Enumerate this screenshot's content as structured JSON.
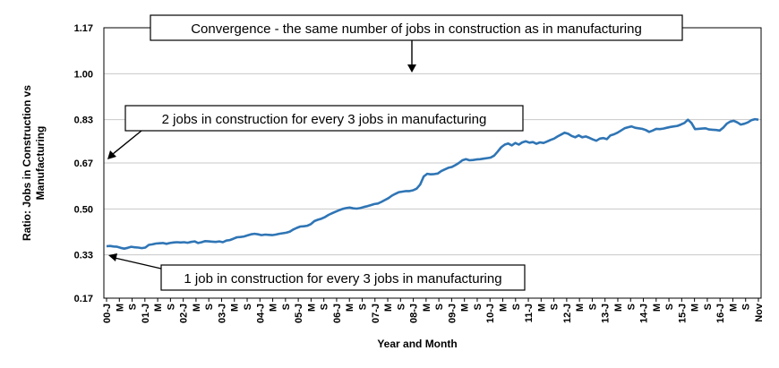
{
  "chart_data": {
    "type": "line",
    "title": "",
    "xlabel": "Year and Month",
    "ylabel_lines": [
      "Ratio: Jobs in Construction vs",
      "Manufacturing"
    ],
    "ylim": [
      0.17,
      1.17
    ],
    "yticks": [
      "1.17",
      "1.00",
      "0.83",
      "0.67",
      "0.50",
      "0.33",
      "0.17"
    ],
    "grid": "horizontal",
    "line_color": "#2f75b5",
    "x_tick_labels": [
      "00-J",
      "M",
      "S",
      "01-J",
      "M",
      "S",
      "02-J",
      "M",
      "S",
      "03-J",
      "M",
      "S",
      "04-J",
      "M",
      "S",
      "05-J",
      "M",
      "S",
      "06-J",
      "M",
      "S",
      "07-J",
      "M",
      "S",
      "08-J",
      "M",
      "S",
      "09-J",
      "M",
      "S",
      "10-J",
      "M",
      "S",
      "11-J",
      "M",
      "S",
      "12-J",
      "M",
      "S",
      "13-J",
      "M",
      "S",
      "14-J",
      "M",
      "S",
      "15-J",
      "M",
      "S",
      "16-J",
      "M",
      "S",
      "Nov"
    ],
    "series": [
      {
        "values": [
          0.362,
          0.363,
          0.361,
          0.36,
          0.356,
          0.353,
          0.356,
          0.36,
          0.358,
          0.357,
          0.355,
          0.357,
          0.367,
          0.369,
          0.372,
          0.373,
          0.374,
          0.371,
          0.374,
          0.376,
          0.377,
          0.376,
          0.377,
          0.375,
          0.378,
          0.38,
          0.374,
          0.377,
          0.381,
          0.38,
          0.379,
          0.378,
          0.38,
          0.377,
          0.383,
          0.385,
          0.39,
          0.395,
          0.396,
          0.398,
          0.402,
          0.406,
          0.408,
          0.406,
          0.403,
          0.405,
          0.404,
          0.403,
          0.405,
          0.408,
          0.41,
          0.412,
          0.416,
          0.424,
          0.43,
          0.435,
          0.436,
          0.438,
          0.444,
          0.455,
          0.46,
          0.464,
          0.47,
          0.478,
          0.484,
          0.49,
          0.495,
          0.5,
          0.503,
          0.505,
          0.502,
          0.501,
          0.503,
          0.507,
          0.51,
          0.514,
          0.518,
          0.52,
          0.526,
          0.533,
          0.54,
          0.549,
          0.556,
          0.562,
          0.564,
          0.566,
          0.566,
          0.569,
          0.575,
          0.59,
          0.62,
          0.63,
          0.628,
          0.629,
          0.631,
          0.64,
          0.646,
          0.652,
          0.655,
          0.662,
          0.67,
          0.68,
          0.684,
          0.68,
          0.681,
          0.683,
          0.684,
          0.686,
          0.688,
          0.69,
          0.697,
          0.712,
          0.728,
          0.738,
          0.742,
          0.735,
          0.744,
          0.738,
          0.746,
          0.75,
          0.745,
          0.747,
          0.741,
          0.746,
          0.744,
          0.749,
          0.755,
          0.76,
          0.768,
          0.775,
          0.782,
          0.778,
          0.77,
          0.765,
          0.772,
          0.765,
          0.768,
          0.763,
          0.757,
          0.752,
          0.76,
          0.762,
          0.758,
          0.772,
          0.776,
          0.782,
          0.79,
          0.798,
          0.802,
          0.805,
          0.8,
          0.798,
          0.796,
          0.792,
          0.785,
          0.79,
          0.796,
          0.795,
          0.797,
          0.8,
          0.803,
          0.805,
          0.807,
          0.812,
          0.818,
          0.83,
          0.818,
          0.795,
          0.796,
          0.797,
          0.798,
          0.794,
          0.793,
          0.792,
          0.79,
          0.8,
          0.815,
          0.823,
          0.826,
          0.82,
          0.812,
          0.815,
          0.82,
          0.828,
          0.832,
          0.83
        ]
      }
    ],
    "annotations": [
      {
        "text": "Convergence - the same number of jobs in construction as in manufacturing",
        "points_to_y": 1.0,
        "points_to_x_index": 100
      },
      {
        "text": "2 jobs in construction for every 3 jobs in manufacturing",
        "points_to_y": 0.67,
        "points_to_x_index": 0
      },
      {
        "text": "1 job in construction for every 3 jobs in manufacturing",
        "points_to_y": 0.33,
        "points_to_x_index": 0
      }
    ]
  }
}
